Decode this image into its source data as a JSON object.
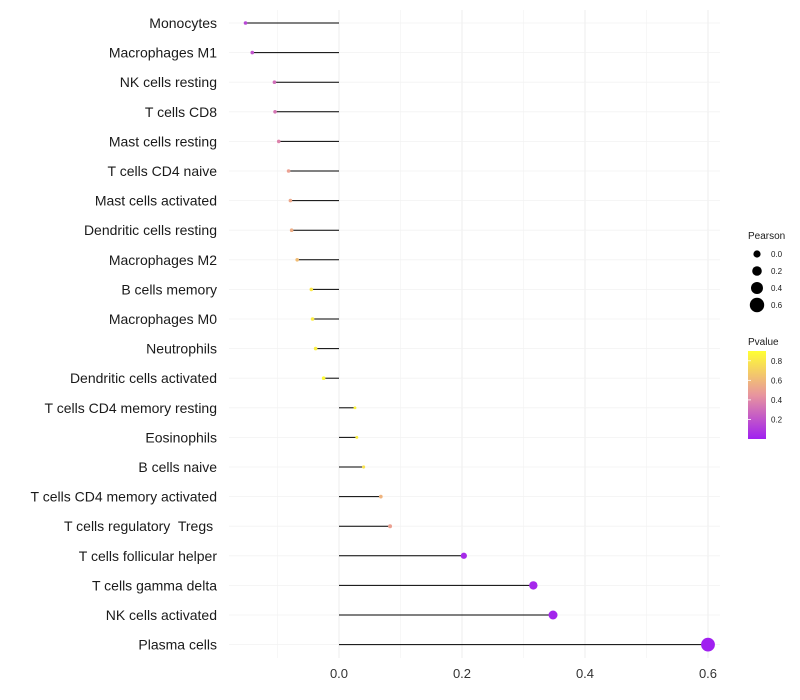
{
  "chart_data": {
    "type": "lollipop",
    "title": "",
    "xlabel": "",
    "ylabel": "",
    "xlim": [
      -0.16,
      0.62
    ],
    "x_ticks": [
      0.0,
      0.2,
      0.4,
      0.6
    ],
    "x_tick_labels": [
      "0.0",
      "0.2",
      "0.4",
      "0.6"
    ],
    "grid": true,
    "categories": [
      "Monocytes",
      "Macrophages M1",
      "NK cells resting",
      "T cells CD8",
      "Mast cells resting",
      "T cells CD4 naive",
      "Mast cells activated",
      "Dendritic cells resting",
      "Macrophages M2",
      "B cells memory",
      "Macrophages M0",
      "Neutrophils",
      "Dendritic cells activated",
      "T cells CD4 memory resting",
      "Eosinophils",
      "B cells naive",
      "T cells CD4 memory activated",
      "T cells regulatory  Tregs ",
      "T cells follicular helper",
      "T cells gamma delta",
      "NK cells activated",
      "Plasma cells"
    ],
    "pearson": [
      -0.152,
      -0.141,
      -0.105,
      -0.104,
      -0.098,
      -0.082,
      -0.079,
      -0.077,
      -0.068,
      -0.045,
      -0.043,
      -0.038,
      -0.025,
      0.026,
      0.029,
      0.04,
      0.068,
      0.083,
      0.203,
      0.316,
      0.348,
      0.6
    ],
    "pvalue": [
      0.15,
      0.2,
      0.3,
      0.33,
      0.38,
      0.5,
      0.53,
      0.55,
      0.62,
      0.8,
      0.82,
      0.83,
      0.88,
      0.86,
      0.84,
      0.78,
      0.58,
      0.5,
      0.04,
      0.03,
      0.02,
      0.001
    ],
    "legend": {
      "size_title": "Pearson",
      "size_values": [
        0.0,
        0.2,
        0.4,
        0.6
      ],
      "size_labels": [
        "0.0",
        "0.2",
        "0.4",
        "0.6"
      ],
      "color_title": "Pvalue",
      "color_values": [
        0.2,
        0.4,
        0.6,
        0.8
      ],
      "color_labels": [
        "0.2",
        "0.4",
        "0.6",
        "0.8"
      ],
      "color_range": [
        0.0,
        0.9
      ],
      "color_low": "#a020f0",
      "color_mid": "#e8959e",
      "color_high": "#ffff33",
      "position": "right"
    }
  }
}
